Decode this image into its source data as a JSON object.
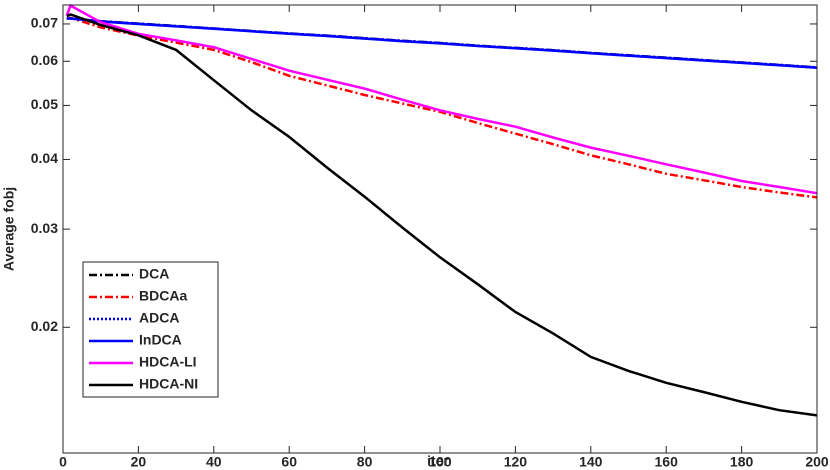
{
  "chart_data": {
    "type": "line",
    "xlabel": "iter",
    "ylabel": "Average fobj",
    "log_y": true,
    "xlim": [
      0,
      200
    ],
    "xticks": [
      0,
      20,
      40,
      60,
      80,
      100,
      120,
      140,
      160,
      180,
      200
    ],
    "ylim": [
      0.0119,
      0.0757
    ],
    "yticks": [
      0.02,
      0.03,
      0.04,
      0.05,
      0.06,
      0.07
    ],
    "legend": "lower-left",
    "x": [
      1,
      2,
      10,
      20,
      30,
      40,
      50,
      60,
      70,
      80,
      90,
      100,
      110,
      120,
      130,
      140,
      150,
      160,
      170,
      180,
      190,
      200
    ],
    "series": [
      {
        "name": "DCA",
        "color": "#000000",
        "linestyle": "dashdot",
        "values": [
          0.0716,
          0.0716,
          0.0708,
          0.0701,
          0.0694,
          0.0687,
          0.068,
          0.0673,
          0.0667,
          0.066,
          0.0653,
          0.0647,
          0.064,
          0.0634,
          0.0628,
          0.0621,
          0.0615,
          0.0609,
          0.0603,
          0.0597,
          0.0591,
          0.0585
        ]
      },
      {
        "name": "BDCAa",
        "color": "#ff0000",
        "linestyle": "dashdot",
        "values": [
          0.0715,
          0.0718,
          0.069,
          0.0667,
          0.0648,
          0.0629,
          0.0598,
          0.0565,
          0.0543,
          0.0522,
          0.0504,
          0.0487,
          0.0465,
          0.0445,
          0.0426,
          0.0407,
          0.0392,
          0.0377,
          0.0367,
          0.0357,
          0.0349,
          0.0342
        ]
      },
      {
        "name": "ADCA",
        "color": "#0000ff",
        "linestyle": "dotted",
        "values": [
          0.0716,
          0.0716,
          0.0708,
          0.0701,
          0.0694,
          0.0687,
          0.068,
          0.0673,
          0.0667,
          0.066,
          0.0653,
          0.0647,
          0.064,
          0.0634,
          0.0628,
          0.0621,
          0.0615,
          0.0609,
          0.0603,
          0.0597,
          0.0591,
          0.0585
        ]
      },
      {
        "name": "InDCA",
        "color": "#0000ff",
        "linestyle": "solid",
        "values": [
          0.0716,
          0.0716,
          0.0707,
          0.07,
          0.0693,
          0.0686,
          0.0679,
          0.0672,
          0.0666,
          0.0659,
          0.0652,
          0.0646,
          0.0639,
          0.0633,
          0.0627,
          0.062,
          0.0614,
          0.0608,
          0.0602,
          0.0596,
          0.059,
          0.0584
        ]
      },
      {
        "name": "HDCA-LI",
        "color": "#ff00ff",
        "linestyle": "solid",
        "values": [
          0.0725,
          0.0755,
          0.0705,
          0.0672,
          0.0654,
          0.0636,
          0.0606,
          0.0577,
          0.0556,
          0.0536,
          0.0512,
          0.049,
          0.0473,
          0.0458,
          0.0438,
          0.042,
          0.0406,
          0.0392,
          0.0379,
          0.0366,
          0.0357,
          0.0348
        ]
      },
      {
        "name": "HDCA-NI",
        "color": "#000000",
        "linestyle": "solid",
        "values": [
          0.0723,
          0.0728,
          0.0697,
          0.0668,
          0.0629,
          0.0555,
          0.049,
          0.0439,
          0.0387,
          0.0343,
          0.0302,
          0.0267,
          0.0239,
          0.0213,
          0.0195,
          0.0177,
          0.0167,
          0.0159,
          0.0153,
          0.0147,
          0.0142,
          0.0139
        ]
      }
    ]
  }
}
